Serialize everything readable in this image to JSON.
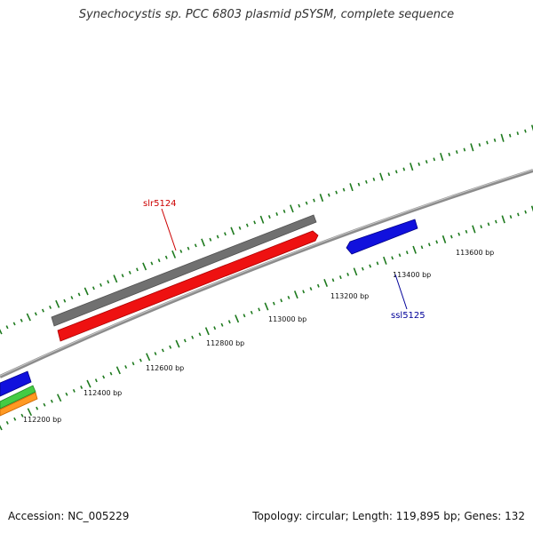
{
  "title": "Synechocystis sp. PCC 6803 plasmid pSYSM, complete sequence",
  "footer": {
    "accession": "Accession: NC_005229",
    "summary": "Topology: circular; Length: 119,895 bp; Genes: 132"
  },
  "colors": {
    "backbone": "#888888",
    "tick": "#1e7a1e",
    "gray_feature": "#707070",
    "red_feature": "#ee1111",
    "blue_feature": "#1111dd",
    "green_feature": "#44cc44",
    "orange_feature": "#ff9922",
    "red_label": "#cc0000",
    "blue_label": "#000099"
  },
  "ticks": [
    "112200 bp",
    "112400 bp",
    "112600 bp",
    "112800 bp",
    "113000 bp",
    "113200 bp",
    "113400 bp",
    "113600 bp"
  ],
  "genes": [
    {
      "name": "slr5124",
      "color": "red_label"
    },
    {
      "name": "ssl5125",
      "color": "blue_label"
    }
  ]
}
